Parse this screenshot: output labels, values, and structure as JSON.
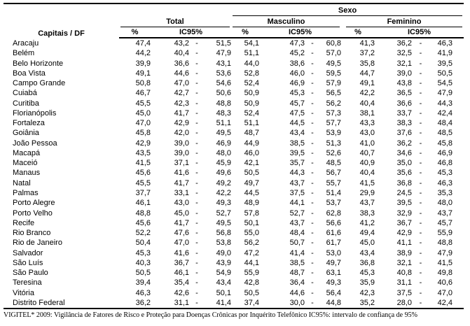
{
  "table": {
    "city_header": "Capitais / DF",
    "sexo_label": "Sexo",
    "total_label": "Total",
    "masculino_label": "Masculino",
    "feminino_label": "Feminino",
    "pct_label": "%",
    "ic_label": "IC95%",
    "dash": "-",
    "columns": [
      "city",
      "total_pct",
      "total_ic_low",
      "total_ic_high",
      "masc_pct",
      "masc_ic_low",
      "masc_ic_high",
      "fem_pct",
      "fem_ic_low",
      "fem_ic_high"
    ],
    "rows": [
      [
        "Aracaju",
        "47,4",
        "43,2",
        "51,5",
        "54,1",
        "47,3",
        "60,8",
        "41,3",
        "36,2",
        "46,3"
      ],
      [
        "Belém",
        "44,2",
        "40,4",
        "47,9",
        "51,1",
        "45,2",
        "57,0",
        "37,2",
        "32,5",
        "41,9"
      ],
      [
        "Belo Horizonte",
        "39,9",
        "36,6",
        "43,1",
        "44,0",
        "38,6",
        "49,5",
        "35,8",
        "32,1",
        "39,5"
      ],
      [
        "Boa Vista",
        "49,1",
        "44,6",
        "53,6",
        "52,8",
        "46,0",
        "59,5",
        "44,7",
        "39,0",
        "50,5"
      ],
      [
        "Campo Grande",
        "50,8",
        "47,0",
        "54,6",
        "52,4",
        "46,9",
        "57,9",
        "49,1",
        "43,8",
        "54,5"
      ],
      [
        "Cuiabá",
        "46,7",
        "42,7",
        "50,6",
        "50,9",
        "45,3",
        "56,5",
        "42,2",
        "36,5",
        "47,9"
      ],
      [
        "Curitiba",
        "45,5",
        "42,3",
        "48,8",
        "50,9",
        "45,7",
        "56,2",
        "40,4",
        "36,6",
        "44,3"
      ],
      [
        "Florianópolis",
        "45,0",
        "41,7",
        "48,3",
        "52,4",
        "47,5",
        "57,3",
        "38,1",
        "33,7",
        "42,4"
      ],
      [
        "Fortaleza",
        "47,0",
        "42,9",
        "51,1",
        "51,1",
        "44,5",
        "57,7",
        "43,3",
        "38,3",
        "48,4"
      ],
      [
        "Goiânia",
        "45,8",
        "42,0",
        "49,5",
        "48,7",
        "43,4",
        "53,9",
        "43,0",
        "37,6",
        "48,5"
      ],
      [
        "João Pessoa",
        "42,9",
        "39,0",
        "46,9",
        "44,9",
        "38,5",
        "51,3",
        "41,0",
        "36,2",
        "45,8"
      ],
      [
        "Macapá",
        "43,5",
        "39,0",
        "48,0",
        "46,0",
        "39,5",
        "52,6",
        "40,7",
        "34,6",
        "46,9"
      ],
      [
        "Maceió",
        "41,5",
        "37,1",
        "45,9",
        "42,1",
        "35,7",
        "48,5",
        "40,9",
        "35,0",
        "46,8"
      ],
      [
        "Manaus",
        "45,6",
        "41,6",
        "49,6",
        "50,5",
        "44,3",
        "56,7",
        "40,4",
        "35,6",
        "45,3"
      ],
      [
        "Natal",
        "45,5",
        "41,7",
        "49,2",
        "49,7",
        "43,7",
        "55,7",
        "41,5",
        "36,8",
        "46,3"
      ],
      [
        "Palmas",
        "37,7",
        "33,1",
        "42,2",
        "44,5",
        "37,5",
        "51,4",
        "29,9",
        "24,5",
        "35,3"
      ],
      [
        "Porto Alegre",
        "46,1",
        "43,0",
        "49,3",
        "48,9",
        "44,1",
        "53,7",
        "43,7",
        "39,5",
        "48,0"
      ],
      [
        "Porto Velho",
        "48,8",
        "45,0",
        "52,7",
        "57,8",
        "52,7",
        "62,8",
        "38,3",
        "32,9",
        "43,7"
      ],
      [
        "Recife",
        "45,6",
        "41,7",
        "49,5",
        "50,1",
        "43,7",
        "56,6",
        "41,2",
        "36,7",
        "45,7"
      ],
      [
        "Rio Branco",
        "52,2",
        "47,6",
        "56,8",
        "55,0",
        "48,4",
        "61,6",
        "49,4",
        "42,9",
        "55,9"
      ],
      [
        "Rio de Janeiro",
        "50,4",
        "47,0",
        "53,8",
        "56,2",
        "50,7",
        "61,7",
        "45,0",
        "41,1",
        "48,8"
      ],
      [
        "Salvador",
        "45,3",
        "41,6",
        "49,0",
        "47,2",
        "41,4",
        "53,0",
        "43,4",
        "38,9",
        "47,9"
      ],
      [
        "São Luís",
        "40,3",
        "36,7",
        "43,9",
        "44,1",
        "38,5",
        "49,7",
        "36,8",
        "32,1",
        "41,5"
      ],
      [
        "São Paulo",
        "50,5",
        "46,1",
        "54,9",
        "55,9",
        "48,7",
        "63,1",
        "45,3",
        "40,8",
        "49,8"
      ],
      [
        "Teresina",
        "39,4",
        "35,4",
        "43,4",
        "42,8",
        "36,4",
        "49,3",
        "35,9",
        "31,1",
        "40,6"
      ],
      [
        "Vitória",
        "46,3",
        "42,6",
        "50,1",
        "50,5",
        "44,6",
        "56,4",
        "42,3",
        "37,5",
        "47,0"
      ],
      [
        "Distrito Federal",
        "36,2",
        "31,1",
        "41,4",
        "37,4",
        "30,0",
        "44,8",
        "35,2",
        "28,0",
        "42,4"
      ]
    ]
  },
  "footer": "VIGITEL* 2009: Vigilância de Fatores de Risco e Proteção para Doenças Crônicas por Inquérito Telefônico IC95%: intervalo de confiança de 95%",
  "colors": {
    "text": "#000000",
    "border": "#000000",
    "background": "#ffffff"
  }
}
